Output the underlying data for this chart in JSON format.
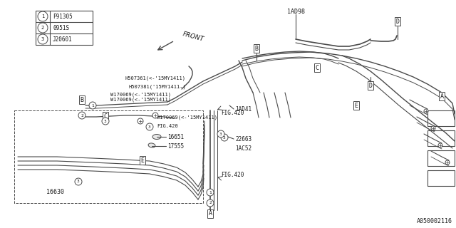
{
  "bg_color": "#ffffff",
  "line_color": "#4a4a4a",
  "text_color": "#1a1a1a",
  "diagram_number": "A050002116",
  "legend": [
    {
      "num": "1",
      "code": "F91305"
    },
    {
      "num": "2",
      "code": "0951S"
    },
    {
      "num": "3",
      "code": "J20601"
    }
  ],
  "figsize": [
    6.4,
    3.2
  ],
  "dpi": 100
}
